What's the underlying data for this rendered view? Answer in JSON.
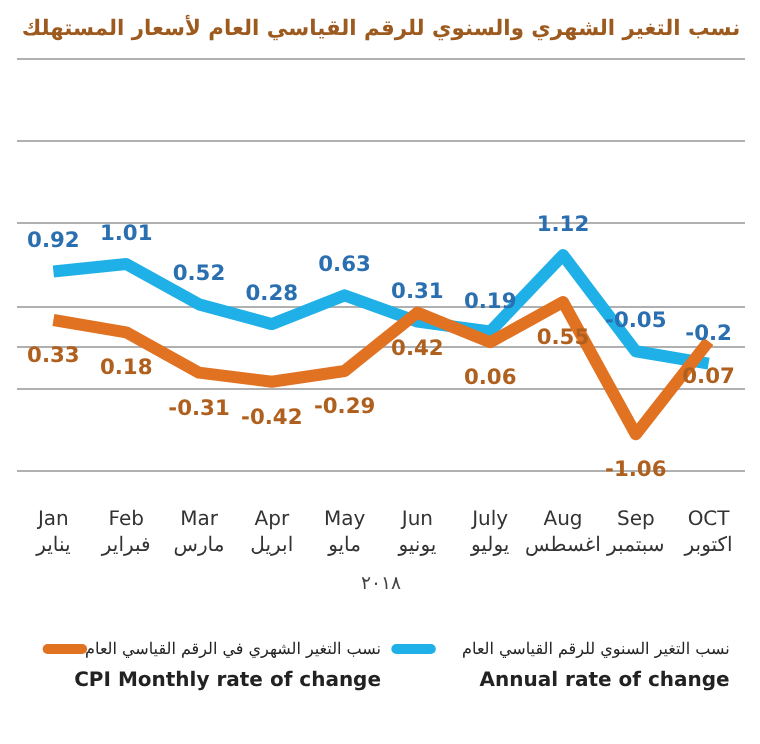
{
  "chart_data": {
    "type": "line",
    "title": "نسب التغير الشهري والسنوي للرقم القياسي العام لأسعار المستهلك",
    "xlabel": "٢٠١٨",
    "categories": [
      "Jan\nيناير",
      "Feb\nفبراير",
      "Mar\nمارس",
      "Apr\nابريل",
      "May\nمايو",
      "Jun\nيونيو",
      "July\nيوليو",
      "Aug\nاغسطس",
      "Sep\nسبتمبر",
      "OCT\nاكتوبر"
    ],
    "series": [
      {
        "name": "نسب التغير السنوي للرقم القياسي العام\nAnnual rate of change",
        "color": "#1fb0e8",
        "values": [
          0.92,
          1.01,
          0.52,
          0.28,
          0.63,
          0.31,
          0.19,
          1.12,
          -0.05,
          -0.2
        ]
      },
      {
        "name": "نسب التغير الشهري في الرقم القياسي العام\nCPI Monthly rate of change",
        "color": "#e07222",
        "values": [
          0.33,
          0.18,
          -0.31,
          -0.42,
          -0.29,
          0.42,
          0.06,
          0.55,
          -1.06,
          0.07
        ]
      }
    ],
    "yticks": [
      {
        "value": -1.5,
        "label": null
      },
      {
        "value": -0.5,
        "label": null
      },
      {
        "value": 0,
        "label": null
      },
      {
        "value": 0.5,
        "label": null
      },
      {
        "value": 1.5,
        "label": null
      },
      {
        "value": 2.5,
        "label": null
      },
      {
        "value": 3.5,
        "label": null
      }
    ],
    "tick_labels": "x",
    "grid": "y",
    "data_labels": true,
    "legend": "bottom",
    "marker": "none",
    "line_style": "solid"
  }
}
